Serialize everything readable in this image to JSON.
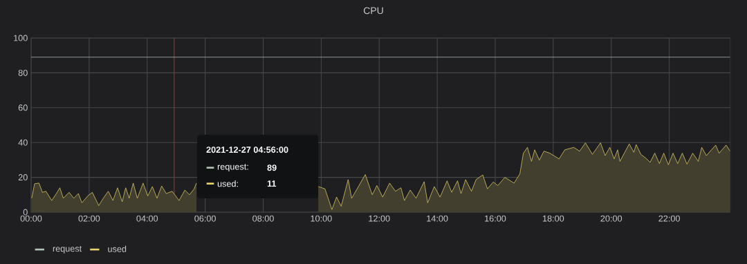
{
  "chart_data": {
    "type": "area",
    "title": "CPU",
    "xlim": [
      0,
      24.1
    ],
    "ylim": [
      0,
      100
    ],
    "xticks": [
      {
        "value": 0,
        "label": "00:00"
      },
      {
        "value": 2,
        "label": "02:00"
      },
      {
        "value": 4,
        "label": "04:00"
      },
      {
        "value": 6,
        "label": "06:00"
      },
      {
        "value": 8,
        "label": "08:00"
      },
      {
        "value": 10,
        "label": "10:00"
      },
      {
        "value": 12,
        "label": "12:00"
      },
      {
        "value": 14,
        "label": "14:00"
      },
      {
        "value": 16,
        "label": "16:00"
      },
      {
        "value": 18,
        "label": "18:00"
      },
      {
        "value": 20,
        "label": "20:00"
      },
      {
        "value": 22,
        "label": "22:00"
      }
    ],
    "yticks": [
      0,
      20,
      40,
      60,
      80,
      100
    ],
    "grid": true,
    "legend": "bottom left",
    "series": [
      {
        "name": "request",
        "type": "line",
        "color": "#b4c4b4",
        "x": [
          0,
          24.1
        ],
        "values": [
          89,
          89
        ]
      },
      {
        "name": "used",
        "color": "#e8d36a",
        "x": [
          0.02,
          0.12,
          0.27,
          0.39,
          0.51,
          0.71,
          0.87,
          0.99,
          1.11,
          1.31,
          1.47,
          1.63,
          1.75,
          1.95,
          2.11,
          2.33,
          2.5,
          2.66,
          2.82,
          2.98,
          3.14,
          3.26,
          3.38,
          3.52,
          3.66,
          3.86,
          4.02,
          4.18,
          4.34,
          4.5,
          4.66,
          4.86,
          5.1,
          5.3,
          5.46,
          5.62,
          5.7,
          7.7,
          9.73,
          9.9,
          10.13,
          10.37,
          10.53,
          10.69,
          10.93,
          11.05,
          11.24,
          11.52,
          11.76,
          11.92,
          12.12,
          12.36,
          12.56,
          12.75,
          12.87,
          13.07,
          13.27,
          13.55,
          13.67,
          13.9,
          14.1,
          14.34,
          14.5,
          14.7,
          14.82,
          14.98,
          15.18,
          15.34,
          15.57,
          15.73,
          15.93,
          16.09,
          16.33,
          16.65,
          16.85,
          16.97,
          17.11,
          17.25,
          17.36,
          17.52,
          17.68,
          17.88,
          18.2,
          18.4,
          18.71,
          18.91,
          19.11,
          19.35,
          19.63,
          19.79,
          19.95,
          20.1,
          20.22,
          20.3,
          20.62,
          20.78,
          20.86,
          21.02,
          21.18,
          21.34,
          21.5,
          21.66,
          21.81,
          21.97,
          22.13,
          22.29,
          22.45,
          22.61,
          22.81,
          23.0,
          23.12,
          23.28,
          23.6,
          23.72,
          23.96,
          24.1
        ],
        "values": [
          8,
          16.3,
          16.7,
          11.4,
          12,
          6.7,
          10.7,
          14,
          8,
          11.4,
          8,
          10.7,
          5.4,
          9.3,
          11.4,
          3.8,
          8.3,
          12,
          6.7,
          14,
          6,
          14,
          8,
          16.7,
          8,
          16.7,
          9.3,
          14.7,
          8,
          15,
          10.7,
          12,
          6.7,
          12.7,
          10,
          13.4,
          16.7,
          null,
          null,
          14.7,
          13.4,
          1.5,
          8.7,
          3.4,
          18.7,
          8,
          13.4,
          21.6,
          10,
          15.3,
          8.7,
          16.7,
          12,
          14,
          6.7,
          12.7,
          8,
          17.5,
          5.4,
          14.7,
          8.7,
          18,
          11.4,
          18,
          10.7,
          18.7,
          12,
          18.7,
          21.4,
          13.4,
          17.3,
          15.3,
          20,
          16.7,
          22,
          33.9,
          37.2,
          29.2,
          35.8,
          29.9,
          35,
          33.9,
          30.6,
          35.8,
          37.2,
          35,
          39.8,
          33.2,
          39.8,
          32.5,
          37.2,
          30.6,
          35.8,
          29.2,
          39.2,
          34.4,
          38.8,
          33.2,
          31.2,
          28.6,
          33.9,
          27.9,
          33.9,
          27.2,
          33.9,
          27.9,
          33.9,
          27.6,
          33.9,
          29.2,
          37.2,
          32.5,
          38.5,
          33.9,
          38.5,
          35.0
        ]
      }
    ],
    "ref_lines": [
      {
        "axis": "x",
        "value": 4.93,
        "color": "#8a2f35"
      }
    ],
    "annotations": [
      "2021-12-27 04:56:00",
      "request:",
      "89",
      "used:",
      "11"
    ]
  }
}
